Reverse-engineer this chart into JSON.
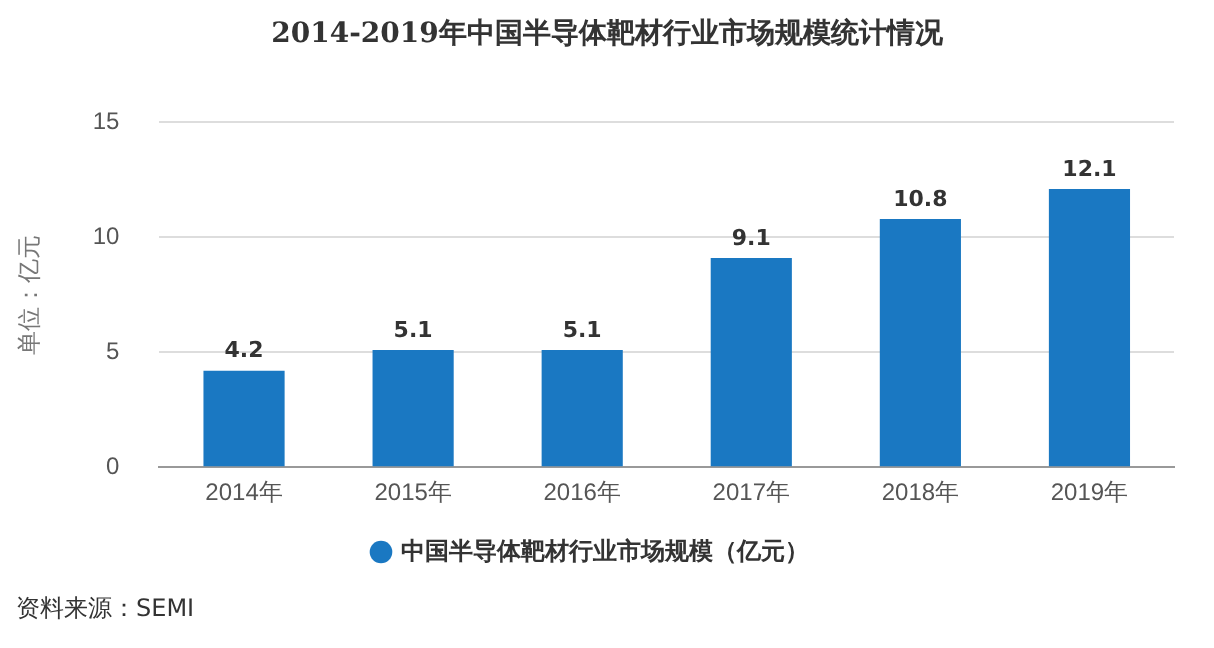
{
  "chart_data": {
    "type": "bar",
    "title": "2014-2019年中国半导体靶材行业市场规模统计情况",
    "ylabel": "单位：亿元",
    "categories": [
      "2014年",
      "2015年",
      "2016年",
      "2017年",
      "2018年",
      "2019年"
    ],
    "series": [
      {
        "name": "中国半导体靶材行业市场规模（亿元）",
        "color": "#1a78c2",
        "values": [
          4.2,
          5.1,
          5.1,
          9.1,
          10.8,
          12.1
        ]
      }
    ],
    "ylim": [
      0,
      15
    ],
    "yticks": [
      0,
      5,
      10,
      15
    ],
    "grid": "y",
    "legend": "bottom",
    "data_labels": true,
    "annotations": [
      "资料来源：SEMI"
    ]
  }
}
